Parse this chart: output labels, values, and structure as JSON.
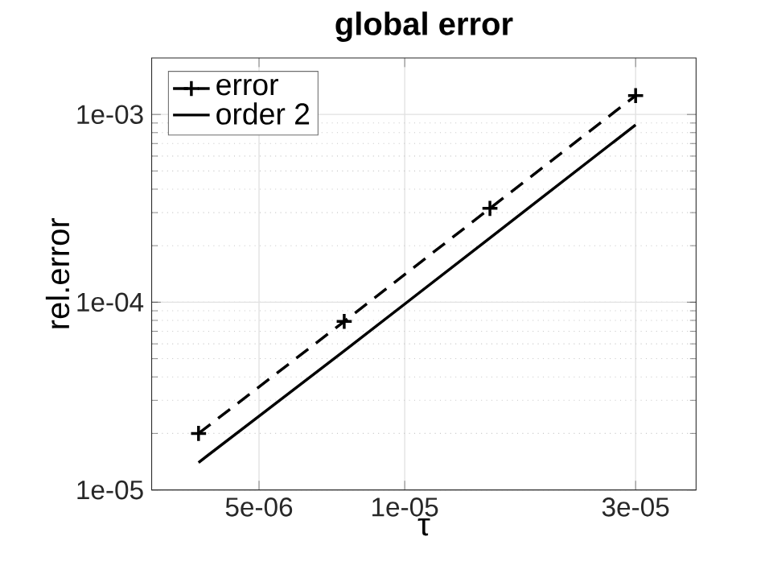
{
  "chart_data": {
    "type": "line",
    "title": "global error",
    "xlabel": "τ",
    "ylabel": "rel.error",
    "log": "xy",
    "grid": true,
    "legend": "top left",
    "xlim": [
      3e-06,
      4e-05
    ],
    "ylim": [
      1e-05,
      0.002
    ],
    "xticks": [
      {
        "value": 5e-06,
        "label": "5e-06"
      },
      {
        "value": 1e-05,
        "label": "1e-05"
      },
      {
        "value": 3e-05,
        "label": "3e-05"
      }
    ],
    "yticks": [
      {
        "value": 1e-05,
        "label": "1e-05"
      },
      {
        "value": 0.0001,
        "label": "1e-04"
      },
      {
        "value": 0.001,
        "label": "1e-03"
      }
    ],
    "series": [
      {
        "name": "error",
        "color": "#000000",
        "marker": "cross",
        "line_style": "dashed",
        "x": [
          3.75e-06,
          7.5e-06,
          1.5e-05,
          3e-05
        ],
        "values": [
          2e-05,
          7.9e-05,
          0.000316,
          0.00126
        ]
      },
      {
        "name": "order 2",
        "color": "#000000",
        "marker": "none",
        "line_style": "solid",
        "x": [
          3.75e-06,
          7.5e-06,
          1.5e-05,
          3e-05
        ],
        "values": [
          1.4e-05,
          5.5e-05,
          0.00022,
          0.00088
        ]
      }
    ]
  }
}
